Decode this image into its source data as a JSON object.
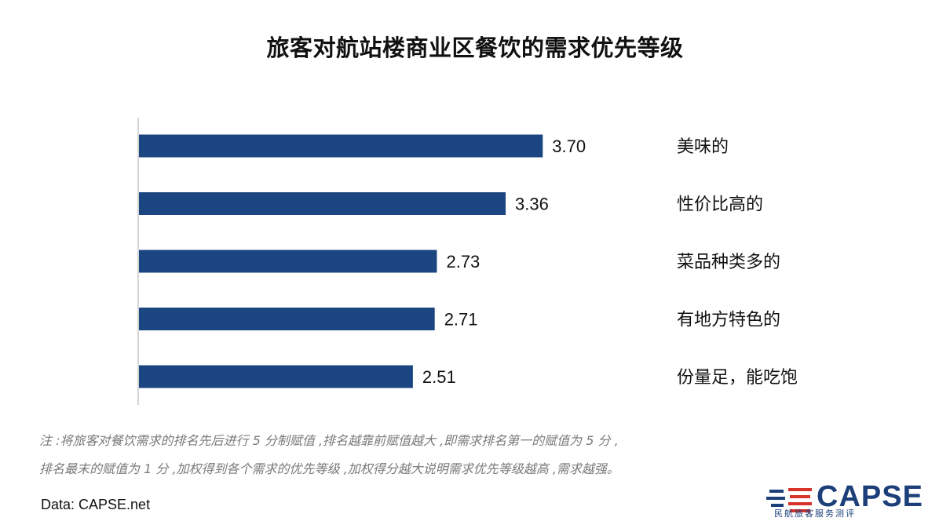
{
  "title": "旅客对航站楼商业区餐饮的需求优先等级",
  "chart_data": {
    "type": "bar",
    "orientation": "horizontal",
    "categories": [
      "美味的",
      "性价比高的",
      "菜品种类多的",
      "有地方特色的",
      "份量足，能吃饱"
    ],
    "values": [
      3.7,
      3.36,
      2.73,
      2.71,
      2.51
    ],
    "value_labels": [
      "3.70",
      "3.36",
      "2.73",
      "2.71",
      "2.51"
    ],
    "bar_color": "#1c4682",
    "grid": false,
    "category_label_side": "right"
  },
  "note": {
    "line1": "注 :将旅客对餐饮需求的排名先后进行 5 分制赋值 ,排名越靠前赋值越大 ,即需求排名第一的赋值为 5 分 ,",
    "line2": "排名最末的赋值为 1 分 ,加权得到各个需求的优先等级 ,加权得分越大说明需求优先等级越高 ,需求越强。"
  },
  "source": "Data: CAPSE.net",
  "logo": {
    "text": "CAPSE",
    "subtitle": "民航旅客服务测评",
    "color": "#1c3f7a",
    "accent_color": "#d9342b"
  }
}
